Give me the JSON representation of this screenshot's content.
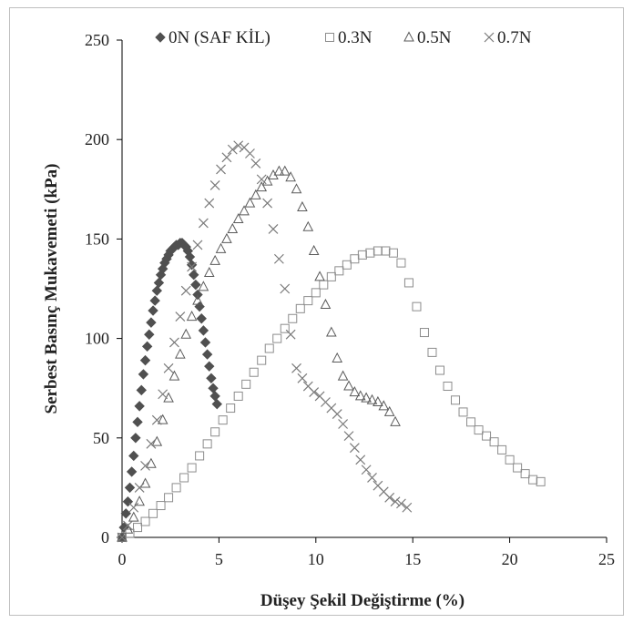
{
  "chart_data": {
    "type": "scatter",
    "title": "",
    "xlabel": "Düşey Şekil Değiştirme (%)",
    "ylabel": "Serbest Basınç Mukavemeti (kPa)",
    "xlim": [
      0,
      25
    ],
    "ylim": [
      0,
      250
    ],
    "xticks": [
      "0",
      "5",
      "10",
      "15",
      "20",
      "25"
    ],
    "yticks": [
      "0",
      "50",
      "100",
      "150",
      "200",
      "250"
    ],
    "grid": false,
    "legend_position": "top",
    "series": [
      {
        "name": "0N (SAF KİL)",
        "marker": "diamond",
        "color": "#505050",
        "x": [
          0.0,
          0.1,
          0.2,
          0.3,
          0.4,
          0.5,
          0.6,
          0.7,
          0.8,
          0.9,
          1.0,
          1.1,
          1.2,
          1.3,
          1.4,
          1.5,
          1.6,
          1.7,
          1.8,
          1.9,
          2.0,
          2.1,
          2.2,
          2.3,
          2.4,
          2.5,
          2.6,
          2.7,
          2.8,
          2.9,
          3.0,
          3.1,
          3.2,
          3.3,
          3.4,
          3.5,
          3.6,
          3.7,
          3.8,
          3.9,
          4.0,
          4.1,
          4.2,
          4.3,
          4.4,
          4.5,
          4.6,
          4.7,
          4.8,
          4.9
        ],
        "y": [
          0,
          5,
          12,
          18,
          25,
          33,
          41,
          50,
          58,
          66,
          74,
          82,
          89,
          96,
          102,
          108,
          114,
          119,
          124,
          128,
          132,
          135,
          138,
          140,
          142,
          144,
          145,
          146,
          147,
          147,
          148,
          148,
          147,
          146,
          144,
          141,
          137,
          132,
          127,
          122,
          116,
          110,
          104,
          98,
          92,
          86,
          80,
          75,
          71,
          67
        ]
      },
      {
        "name": "0.3N",
        "marker": "square",
        "color": "#8c8c8c",
        "x": [
          0.0,
          0.4,
          0.8,
          1.2,
          1.6,
          2.0,
          2.4,
          2.8,
          3.2,
          3.6,
          4.0,
          4.4,
          4.8,
          5.2,
          5.6,
          6.0,
          6.4,
          6.8,
          7.2,
          7.6,
          8.0,
          8.4,
          8.8,
          9.2,
          9.6,
          10.0,
          10.4,
          10.8,
          11.2,
          11.6,
          12.0,
          12.4,
          12.8,
          13.2,
          13.6,
          14.0,
          14.4,
          14.8,
          15.2,
          15.6,
          16.0,
          16.4,
          16.8,
          17.2,
          17.6,
          18.0,
          18.4,
          18.8,
          19.2,
          19.6,
          20.0,
          20.4,
          20.8,
          21.2,
          21.6
        ],
        "y": [
          0,
          2,
          5,
          8,
          12,
          16,
          20,
          25,
          30,
          35,
          41,
          47,
          53,
          59,
          65,
          71,
          77,
          83,
          89,
          95,
          100,
          105,
          110,
          115,
          119,
          123,
          127,
          131,
          134,
          137,
          140,
          142,
          143,
          144,
          144,
          143,
          138,
          128,
          116,
          103,
          93,
          84,
          76,
          69,
          63,
          58,
          54,
          51,
          48,
          44,
          39,
          35,
          32,
          29,
          28
        ]
      },
      {
        "name": "0.5N",
        "marker": "triangle",
        "color": "#5a5a5a",
        "x": [
          0.0,
          0.3,
          0.6,
          0.9,
          1.2,
          1.5,
          1.8,
          2.1,
          2.4,
          2.7,
          3.0,
          3.3,
          3.6,
          3.9,
          4.2,
          4.5,
          4.8,
          5.1,
          5.4,
          5.7,
          6.0,
          6.3,
          6.6,
          6.9,
          7.2,
          7.5,
          7.8,
          8.1,
          8.4,
          8.7,
          9.0,
          9.3,
          9.6,
          9.9,
          10.2,
          10.5,
          10.8,
          11.1,
          11.4,
          11.7,
          12.0,
          12.3,
          12.6,
          12.9,
          13.2,
          13.5,
          13.8,
          14.1
        ],
        "y": [
          0,
          4,
          10,
          18,
          27,
          37,
          48,
          59,
          70,
          81,
          92,
          102,
          111,
          119,
          126,
          133,
          139,
          145,
          150,
          155,
          160,
          164,
          168,
          172,
          176,
          179,
          182,
          184,
          184,
          181,
          175,
          166,
          156,
          144,
          131,
          117,
          103,
          90,
          81,
          76,
          73,
          71,
          70,
          69,
          68,
          66,
          63,
          58
        ]
      },
      {
        "name": "0.7N",
        "marker": "x",
        "color": "#7a7a7a",
        "x": [
          0.0,
          0.3,
          0.6,
          0.9,
          1.2,
          1.5,
          1.8,
          2.1,
          2.4,
          2.7,
          3.0,
          3.3,
          3.6,
          3.9,
          4.2,
          4.5,
          4.8,
          5.1,
          5.4,
          5.7,
          6.0,
          6.3,
          6.6,
          6.9,
          7.2,
          7.5,
          7.8,
          8.1,
          8.4,
          8.7,
          9.0,
          9.3,
          9.6,
          9.9,
          10.2,
          10.5,
          10.8,
          11.1,
          11.4,
          11.7,
          12.0,
          12.3,
          12.6,
          12.9,
          13.2,
          13.5,
          13.8,
          14.1,
          14.4,
          14.7
        ],
        "y": [
          0,
          6,
          15,
          25,
          36,
          47,
          59,
          72,
          85,
          98,
          111,
          124,
          136,
          147,
          158,
          168,
          177,
          185,
          191,
          195,
          197,
          196,
          193,
          188,
          180,
          168,
          155,
          140,
          125,
          102,
          85,
          80,
          76,
          73,
          71,
          68,
          65,
          62,
          57,
          51,
          45,
          39,
          34,
          30,
          26,
          23,
          20,
          18,
          17,
          15
        ]
      }
    ]
  }
}
